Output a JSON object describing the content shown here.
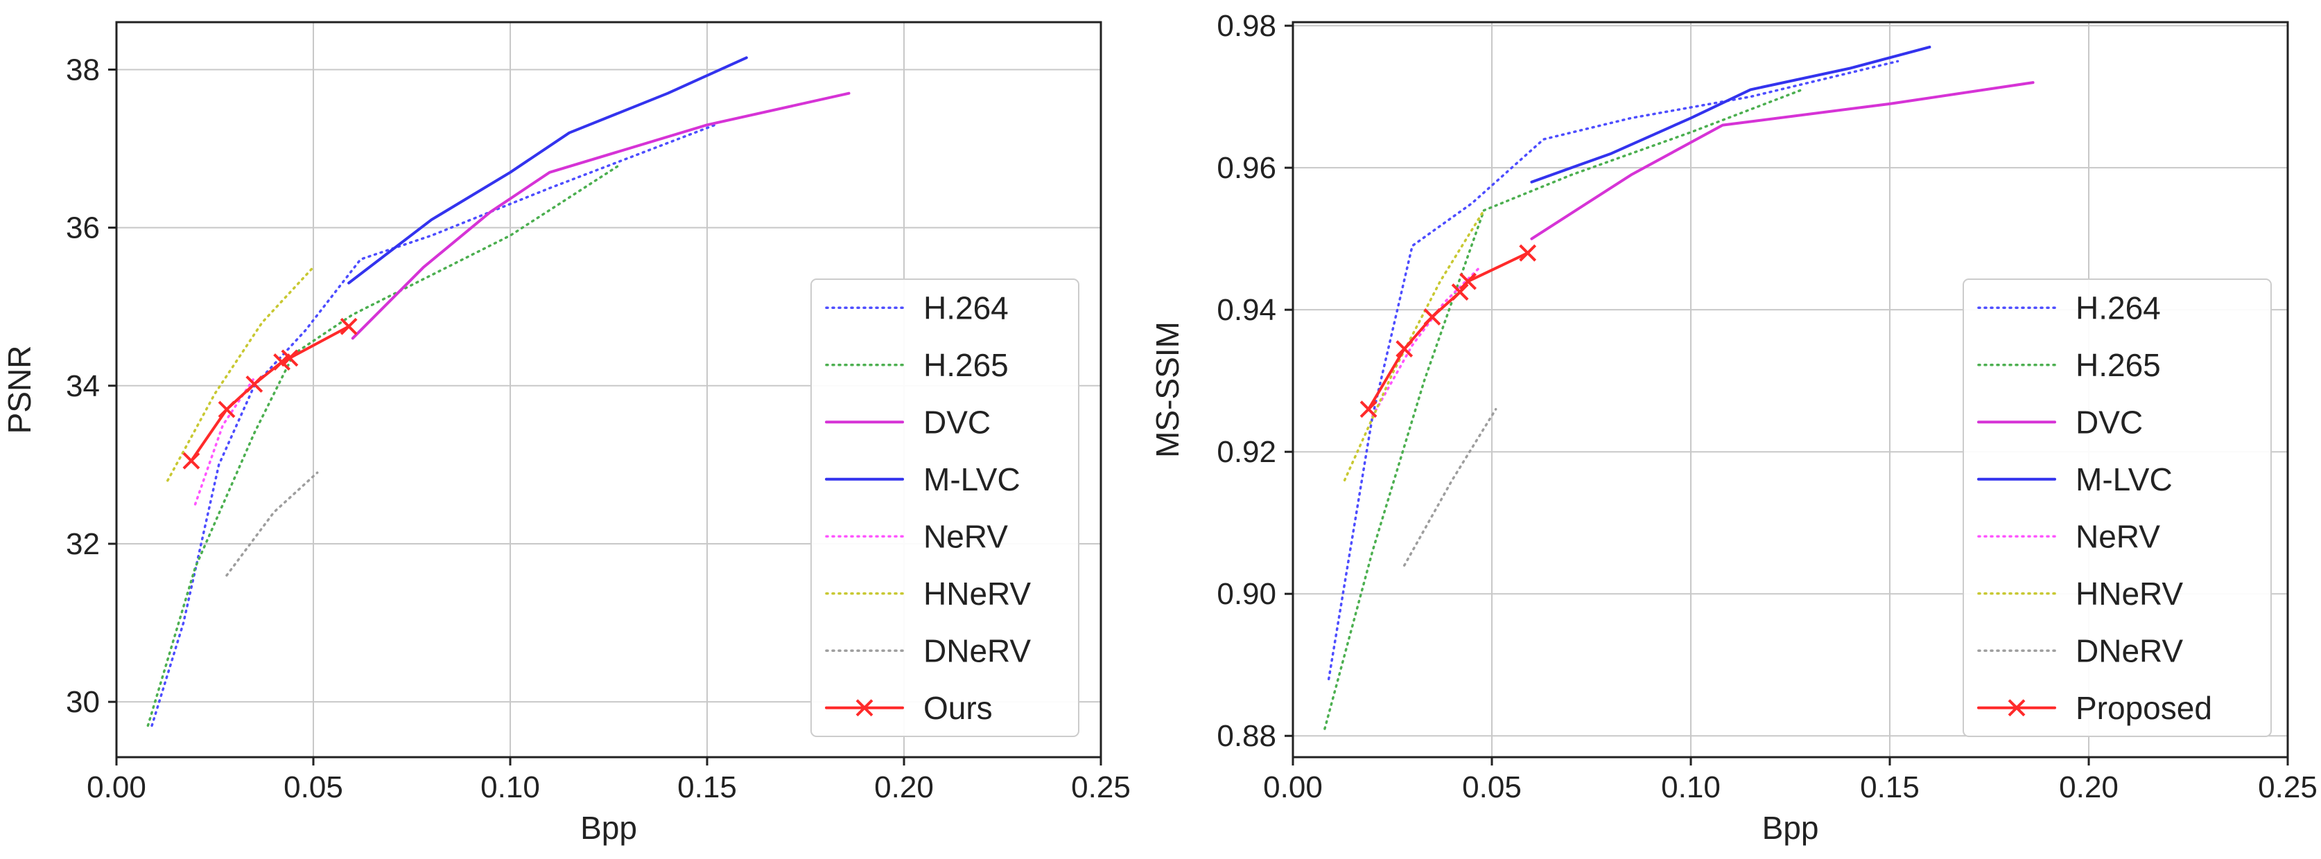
{
  "chart_data": [
    {
      "type": "line",
      "xlabel": "Bpp",
      "ylabel": "PSNR",
      "xlim": [
        0.0,
        0.25
      ],
      "ylim": [
        29.3,
        38.6
      ],
      "xticks": [
        0.0,
        0.05,
        0.1,
        0.15,
        0.2,
        0.25
      ],
      "xtick_labels": [
        "0.00",
        "0.05",
        "0.10",
        "0.15",
        "0.20",
        "0.25"
      ],
      "yticks": [
        30,
        32,
        34,
        36,
        38
      ],
      "ytick_labels": [
        "30",
        "32",
        "34",
        "36",
        "38"
      ],
      "grid": true,
      "legend_position": "lower-right",
      "series": [
        {
          "name": "H.264",
          "color": "#4d4dff",
          "style": "dotted",
          "marker": "none",
          "x": [
            0.009,
            0.017,
            0.026,
            0.035,
            0.048,
            0.062,
            0.08,
            0.11,
            0.152
          ],
          "y": [
            29.7,
            31.0,
            33.0,
            34.0,
            34.7,
            35.6,
            35.9,
            36.5,
            37.3
          ]
        },
        {
          "name": "H.265",
          "color": "#4caf50",
          "style": "dotted",
          "marker": "none",
          "x": [
            0.008,
            0.02,
            0.035,
            0.045,
            0.06,
            0.08,
            0.1,
            0.128
          ],
          "y": [
            29.7,
            31.7,
            33.4,
            34.4,
            34.9,
            35.4,
            35.9,
            36.8
          ]
        },
        {
          "name": "DVC",
          "color": "#d633d6",
          "style": "solid",
          "marker": "none",
          "x": [
            0.06,
            0.078,
            0.095,
            0.11,
            0.15,
            0.186
          ],
          "y": [
            34.6,
            35.5,
            36.2,
            36.7,
            37.3,
            37.7
          ]
        },
        {
          "name": "M-LVC",
          "color": "#3333ee",
          "style": "solid",
          "marker": "none",
          "x": [
            0.059,
            0.08,
            0.1,
            0.115,
            0.14,
            0.16
          ],
          "y": [
            35.3,
            36.1,
            36.7,
            37.2,
            37.7,
            38.15
          ]
        },
        {
          "name": "NeRV",
          "color": "#ff55ff",
          "style": "dotted",
          "marker": "none",
          "x": [
            0.02,
            0.027,
            0.035
          ],
          "y": [
            32.5,
            33.5,
            34.1
          ]
        },
        {
          "name": "HNeRV",
          "color": "#c8c832",
          "style": "dotted",
          "marker": "none",
          "x": [
            0.013,
            0.025,
            0.037,
            0.05
          ],
          "y": [
            32.8,
            33.9,
            34.8,
            35.5
          ]
        },
        {
          "name": "DNeRV",
          "color": "#9e9e9e",
          "style": "dotted",
          "marker": "none",
          "x": [
            0.028,
            0.04,
            0.051
          ],
          "y": [
            31.6,
            32.4,
            32.9
          ]
        },
        {
          "name": "Ours",
          "color": "#ff2a2a",
          "style": "solid",
          "marker": "x",
          "x": [
            0.019,
            0.028,
            0.035,
            0.042,
            0.044,
            0.059
          ],
          "y": [
            33.05,
            33.7,
            34.02,
            34.3,
            34.35,
            34.75
          ]
        }
      ]
    },
    {
      "type": "line",
      "xlabel": "Bpp",
      "ylabel": "MS-SSIM",
      "xlim": [
        0.0,
        0.25
      ],
      "ylim": [
        0.877,
        0.9805
      ],
      "xticks": [
        0.0,
        0.05,
        0.1,
        0.15,
        0.2,
        0.25
      ],
      "xtick_labels": [
        "0.00",
        "0.05",
        "0.10",
        "0.15",
        "0.20",
        "0.25"
      ],
      "yticks": [
        0.88,
        0.9,
        0.92,
        0.94,
        0.96,
        0.98
      ],
      "ytick_labels": [
        "0.88",
        "0.90",
        "0.92",
        "0.94",
        "0.96",
        "0.98"
      ],
      "grid": true,
      "legend_position": "lower-right",
      "series": [
        {
          "name": "H.264",
          "color": "#4d4dff",
          "style": "dotted",
          "marker": "none",
          "x": [
            0.009,
            0.02,
            0.03,
            0.045,
            0.063,
            0.085,
            0.115,
            0.152
          ],
          "y": [
            0.888,
            0.925,
            0.949,
            0.955,
            0.964,
            0.967,
            0.97,
            0.975
          ]
        },
        {
          "name": "H.265",
          "color": "#4caf50",
          "style": "dotted",
          "marker": "none",
          "x": [
            0.008,
            0.02,
            0.033,
            0.048,
            0.07,
            0.1,
            0.128
          ],
          "y": [
            0.881,
            0.906,
            0.93,
            0.954,
            0.959,
            0.965,
            0.971
          ]
        },
        {
          "name": "DVC",
          "color": "#d633d6",
          "style": "solid",
          "marker": "none",
          "x": [
            0.06,
            0.085,
            0.108,
            0.15,
            0.186
          ],
          "y": [
            0.95,
            0.959,
            0.966,
            0.969,
            0.972
          ]
        },
        {
          "name": "M-LVC",
          "color": "#3333ee",
          "style": "solid",
          "marker": "none",
          "x": [
            0.06,
            0.08,
            0.1,
            0.115,
            0.14,
            0.16
          ],
          "y": [
            0.958,
            0.962,
            0.967,
            0.971,
            0.974,
            0.977
          ]
        },
        {
          "name": "NeRV",
          "color": "#ff55ff",
          "style": "dotted",
          "marker": "none",
          "x": [
            0.02,
            0.03,
            0.038,
            0.047
          ],
          "y": [
            0.925,
            0.935,
            0.941,
            0.946
          ]
        },
        {
          "name": "HNeRV",
          "color": "#c8c832",
          "style": "dotted",
          "marker": "none",
          "x": [
            0.013,
            0.025,
            0.037,
            0.048
          ],
          "y": [
            0.916,
            0.931,
            0.944,
            0.954
          ]
        },
        {
          "name": "DNeRV",
          "color": "#9e9e9e",
          "style": "dotted",
          "marker": "none",
          "x": [
            0.028,
            0.04,
            0.051
          ],
          "y": [
            0.904,
            0.916,
            0.926
          ]
        },
        {
          "name": "Proposed",
          "color": "#ff2a2a",
          "style": "solid",
          "marker": "x",
          "x": [
            0.019,
            0.028,
            0.035,
            0.042,
            0.044,
            0.059
          ],
          "y": [
            0.926,
            0.9345,
            0.939,
            0.9425,
            0.944,
            0.948
          ]
        }
      ]
    }
  ]
}
